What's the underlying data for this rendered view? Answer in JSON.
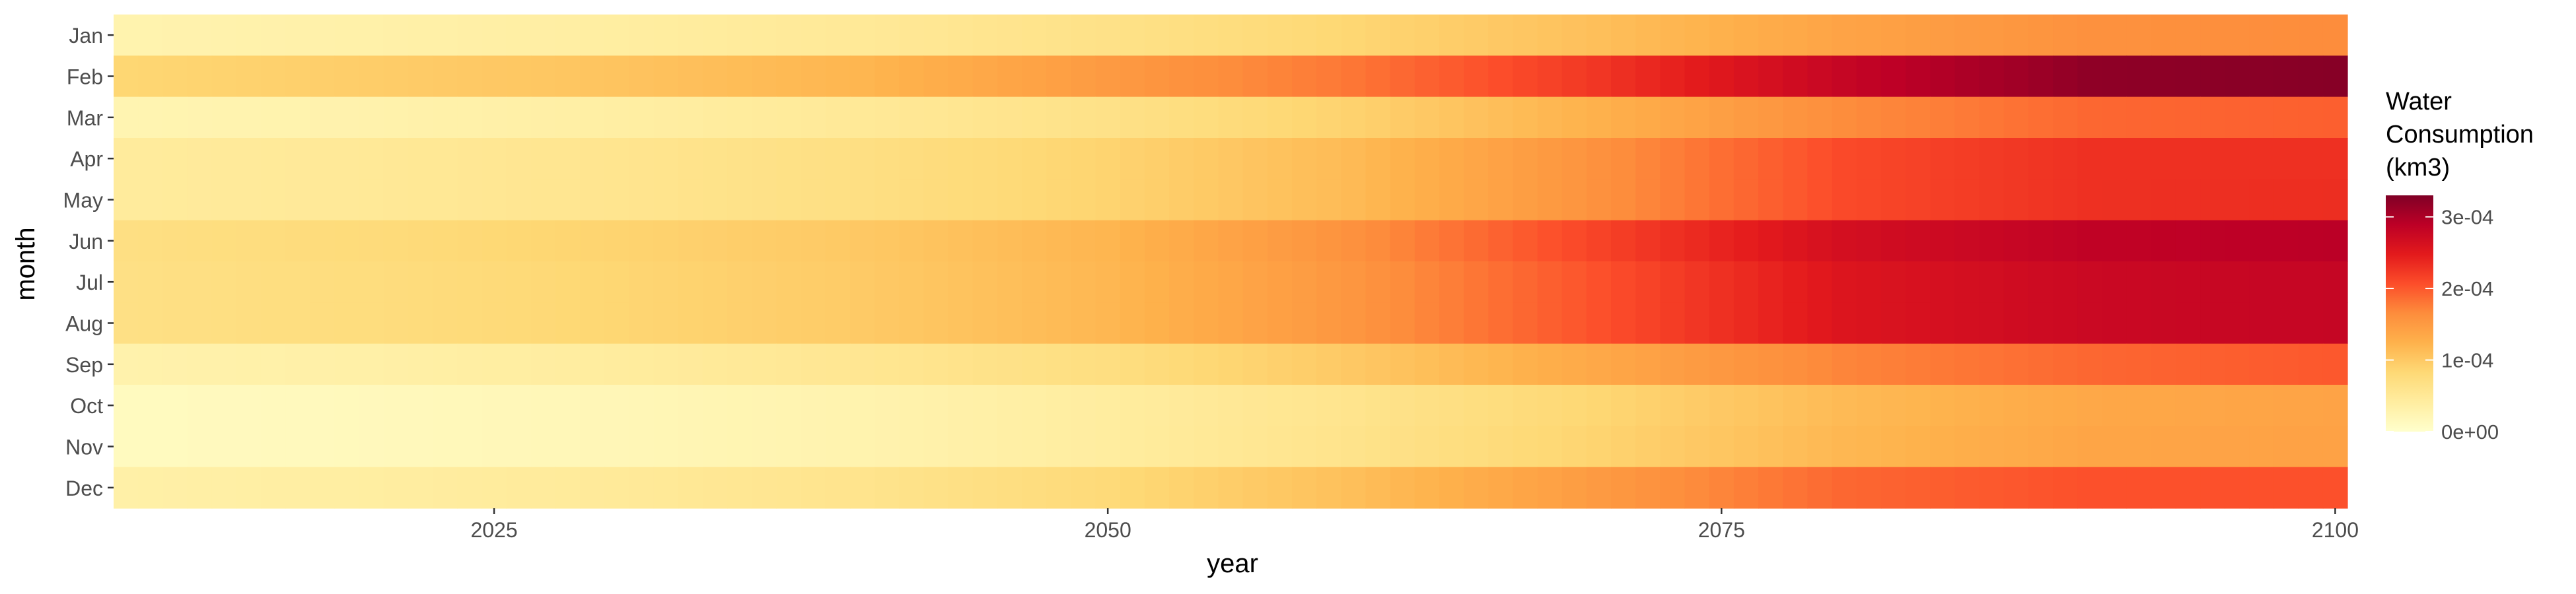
{
  "chart_data": {
    "type": "heatmap",
    "xlabel": "year",
    "ylabel": "month",
    "x_range": [
      2010,
      2100
    ],
    "x_ticks": [
      2025,
      2050,
      2075,
      2100
    ],
    "months": [
      "Jan",
      "Feb",
      "Mar",
      "Apr",
      "May",
      "Jun",
      "Jul",
      "Aug",
      "Sep",
      "Oct",
      "Nov",
      "Dec"
    ],
    "legend": {
      "title_lines": [
        "Water",
        "Consumption",
        "(km3)"
      ],
      "ticks": [
        {
          "value": 0.0,
          "label": "0e+00"
        },
        {
          "value": 0.0001,
          "label": "1e-04"
        },
        {
          "value": 0.0002,
          "label": "2e-04"
        },
        {
          "value": 0.0003,
          "label": "3e-04"
        }
      ],
      "placement": "right",
      "limits": [
        0,
        0.00033
      ]
    },
    "color_scale": {
      "name": "YlOrRd",
      "stops": [
        "#ffffcc",
        "#ffeda0",
        "#fed976",
        "#feb24c",
        "#fd8d3c",
        "#fc4e2a",
        "#e31a1c",
        "#bd0026",
        "#800026"
      ]
    },
    "series": [
      {
        "name": "Jan",
        "x": [
          2010,
          2020,
          2030,
          2040,
          2050,
          2060,
          2070,
          2080,
          2090,
          2100
        ],
        "y": [
          2.8e-05,
          3.3e-05,
          4e-05,
          5e-05,
          6.5e-05,
          8.5e-05,
          0.00011,
          0.00014,
          0.00016,
          0.000165
        ]
      },
      {
        "name": "Feb",
        "x": [
          2010,
          2020,
          2030,
          2040,
          2050,
          2060,
          2070,
          2080,
          2090,
          2100
        ],
        "y": [
          8.5e-05,
          9.5e-05,
          0.000105,
          0.00012,
          0.00015,
          0.00018,
          0.000225,
          0.00028,
          0.00032,
          0.000325
        ]
      },
      {
        "name": "Mar",
        "x": [
          2010,
          2020,
          2030,
          2040,
          2050,
          2060,
          2070,
          2080,
          2090,
          2100
        ],
        "y": [
          2.5e-05,
          3e-05,
          3.8e-05,
          5e-05,
          6.5e-05,
          9e-05,
          0.000125,
          0.000165,
          0.00019,
          0.000195
        ]
      },
      {
        "name": "Apr",
        "x": [
          2010,
          2020,
          2030,
          2040,
          2050,
          2060,
          2070,
          2080,
          2090,
          2100
        ],
        "y": [
          4.5e-05,
          5e-05,
          5.8e-05,
          7e-05,
          8.8e-05,
          0.000115,
          0.00016,
          0.00021,
          0.00023,
          0.00023
        ]
      },
      {
        "name": "May",
        "x": [
          2010,
          2020,
          2030,
          2040,
          2050,
          2060,
          2070,
          2080,
          2090,
          2100
        ],
        "y": [
          4.5e-05,
          5e-05,
          5.8e-05,
          7e-05,
          8.8e-05,
          0.000115,
          0.00016,
          0.00021,
          0.00023,
          0.000232
        ]
      },
      {
        "name": "Jun",
        "x": [
          2010,
          2020,
          2030,
          2040,
          2050,
          2060,
          2070,
          2080,
          2090,
          2100
        ],
        "y": [
          7e-05,
          7.8e-05,
          8.8e-05,
          0.0001,
          0.00012,
          0.00016,
          0.000215,
          0.000265,
          0.000285,
          0.00029
        ]
      },
      {
        "name": "Jul",
        "x": [
          2010,
          2020,
          2030,
          2040,
          2050,
          2060,
          2070,
          2080,
          2090,
          2100
        ],
        "y": [
          6.8e-05,
          7.5e-05,
          8.5e-05,
          9.8e-05,
          0.000118,
          0.000155,
          0.000205,
          0.000255,
          0.000275,
          0.00028
        ]
      },
      {
        "name": "Aug",
        "x": [
          2010,
          2020,
          2030,
          2040,
          2050,
          2060,
          2070,
          2080,
          2090,
          2100
        ],
        "y": [
          6.8e-05,
          7.5e-05,
          8.5e-05,
          9.8e-05,
          0.000118,
          0.000155,
          0.000205,
          0.000255,
          0.000275,
          0.00028
        ]
      },
      {
        "name": "Sep",
        "x": [
          2010,
          2020,
          2030,
          2040,
          2050,
          2060,
          2070,
          2080,
          2090,
          2100
        ],
        "y": [
          3e-05,
          3.5e-05,
          4.3e-05,
          5.5e-05,
          7.2e-05,
          0.0001,
          0.000135,
          0.00017,
          0.00019,
          0.0002
        ]
      },
      {
        "name": "Oct",
        "x": [
          2010,
          2020,
          2030,
          2040,
          2050,
          2060,
          2070,
          2080,
          2090,
          2100
        ],
        "y": [
          1.2e-05,
          1.5e-05,
          2e-05,
          2.8e-05,
          4.2e-05,
          6e-05,
          8.5e-05,
          0.000115,
          0.000135,
          0.00014
        ]
      },
      {
        "name": "Nov",
        "x": [
          2010,
          2020,
          2030,
          2040,
          2050,
          2060,
          2070,
          2080,
          2090,
          2100
        ],
        "y": [
          1.2e-05,
          1.5e-05,
          2e-05,
          2.8e-05,
          4.2e-05,
          6.2e-05,
          8.8e-05,
          0.000118,
          0.000138,
          0.000142
        ]
      },
      {
        "name": "Dec",
        "x": [
          2010,
          2020,
          2030,
          2040,
          2050,
          2060,
          2070,
          2080,
          2090,
          2100
        ],
        "y": [
          3.5e-05,
          4e-05,
          4.8e-05,
          6e-05,
          8e-05,
          0.00011,
          0.00015,
          0.00019,
          0.000205,
          0.000205
        ]
      }
    ]
  }
}
